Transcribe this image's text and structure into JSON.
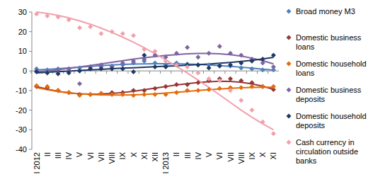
{
  "chart_data": {
    "type": "scatter",
    "categories": [
      "I 2012",
      "II",
      "III",
      "IV",
      "V",
      "VI",
      "VII",
      "VIII",
      "IX",
      "X",
      "XI",
      "XII",
      "I 2013",
      "II",
      "III",
      "IV",
      "V",
      "VI",
      "VII",
      "VIII",
      "IX",
      "X",
      "XI"
    ],
    "ylim": [
      -40,
      30
    ],
    "yticks": [
      -40,
      -30,
      -20,
      -10,
      0,
      10,
      20,
      30
    ],
    "grid": false,
    "legend": "right",
    "series": [
      {
        "name": "Broad money M3",
        "color": "#4f81bd",
        "marker": "diamond",
        "line_style": "solid",
        "values": [
          1,
          0.5,
          1,
          1,
          1.5,
          2,
          2,
          2.5,
          3,
          4,
          5,
          4,
          3,
          4,
          3.5,
          3,
          3,
          3,
          2.5,
          1.5,
          1,
          0.5,
          0.5
        ],
        "trend": [
          0.5,
          0.8,
          1.1,
          1.5,
          1.9,
          2.3,
          2.7,
          3,
          3.3,
          3.5,
          3.6,
          3.7,
          3.7,
          3.6,
          3.5,
          3.3,
          3,
          2.7,
          2.3,
          1.9,
          1.4,
          0.9,
          0.4
        ]
      },
      {
        "name": "Domestic business loans",
        "color": "#953735",
        "marker": "diamond",
        "line_style": "solid",
        "values": [
          -8,
          -8.5,
          -10,
          -11,
          -12,
          -12,
          -11.5,
          -11,
          -11,
          -10,
          -10,
          -9,
          -8,
          -7,
          -7,
          -6,
          -5,
          -4,
          -4,
          -5,
          -6,
          -8,
          -9.5
        ],
        "trend": [
          -8,
          -9.3,
          -10.4,
          -11.2,
          -11.7,
          -11.9,
          -11.8,
          -11.5,
          -11,
          -10.4,
          -9.6,
          -8.8,
          -8,
          -7.2,
          -6.5,
          -5.9,
          -5.5,
          -5.3,
          -5.4,
          -5.8,
          -6.6,
          -7.8,
          -9.4
        ]
      },
      {
        "name": "Domestic household loans",
        "color": "#e46c0a",
        "marker": "diamond",
        "line_style": "solid",
        "values": [
          -7.5,
          -8,
          -10,
          -11,
          -12.5,
          -12,
          -11.5,
          -12,
          -12,
          -12.5,
          -12,
          -12,
          -12,
          -11,
          -10,
          -10,
          -9.5,
          -9,
          -8.5,
          -8.5,
          -8,
          -8,
          -8
        ],
        "trend": [
          -8.5,
          -9.6,
          -10.5,
          -11.2,
          -11.7,
          -12,
          -12.2,
          -12.3,
          -12.3,
          -12.2,
          -12,
          -11.7,
          -11.3,
          -10.9,
          -10.5,
          -10,
          -9.6,
          -9.2,
          -8.9,
          -8.6,
          -8.4,
          -8.3,
          -8.3
        ]
      },
      {
        "name": "Domestic business deposits",
        "color": "#8064a2",
        "marker": "diamond",
        "line_style": "solid",
        "values": [
          0,
          -0.5,
          0.5,
          1,
          -6.5,
          2,
          3,
          2,
          4,
          5,
          6,
          8,
          7,
          9,
          12,
          7,
          9,
          12.5,
          9,
          8,
          6,
          4,
          2
        ],
        "trend": [
          -0.5,
          0,
          0.6,
          1.3,
          2,
          2.8,
          3.6,
          4.4,
          5.2,
          6,
          6.7,
          7.3,
          7.9,
          8.3,
          8.7,
          8.9,
          8.9,
          8.7,
          8.3,
          7.5,
          6.5,
          5.2,
          3.6
        ]
      },
      {
        "name": "Domestic household deposits",
        "color": "#1f3864",
        "marker": "diamond",
        "line_style": "solid",
        "values": [
          -0.5,
          -1,
          -1.5,
          -1,
          0,
          1,
          1,
          1,
          1,
          -0.5,
          8,
          2,
          2,
          3,
          3,
          3,
          1.5,
          2.5,
          3,
          4,
          5,
          6,
          8
        ],
        "trend": [
          -1,
          -0.7,
          -0.4,
          -0.1,
          0.2,
          0.5,
          0.8,
          1.1,
          1.4,
          1.6,
          1.9,
          2.1,
          2.4,
          2.6,
          2.9,
          3.2,
          3.5,
          3.9,
          4.3,
          4.8,
          5.4,
          6.1,
          6.9
        ]
      },
      {
        "name": "Cash currency in circulation outside banks",
        "color": "#f2a0ac",
        "marker": "diamond",
        "line_style": "solid",
        "values": [
          29,
          28,
          27.5,
          26,
          22,
          22.5,
          19,
          20,
          19,
          18,
          11,
          10,
          5,
          3,
          2,
          -1,
          -4,
          -5,
          -10,
          -15,
          -20,
          -26,
          -32
        ],
        "trend": [
          30,
          29.3,
          28.3,
          27,
          25.5,
          23.8,
          21.8,
          19.6,
          17.2,
          14.6,
          11.8,
          8.8,
          5.6,
          2.3,
          -1.1,
          -4.7,
          -8.4,
          -12.2,
          -16.1,
          -20,
          -23.6,
          -27,
          -30
        ]
      }
    ]
  }
}
